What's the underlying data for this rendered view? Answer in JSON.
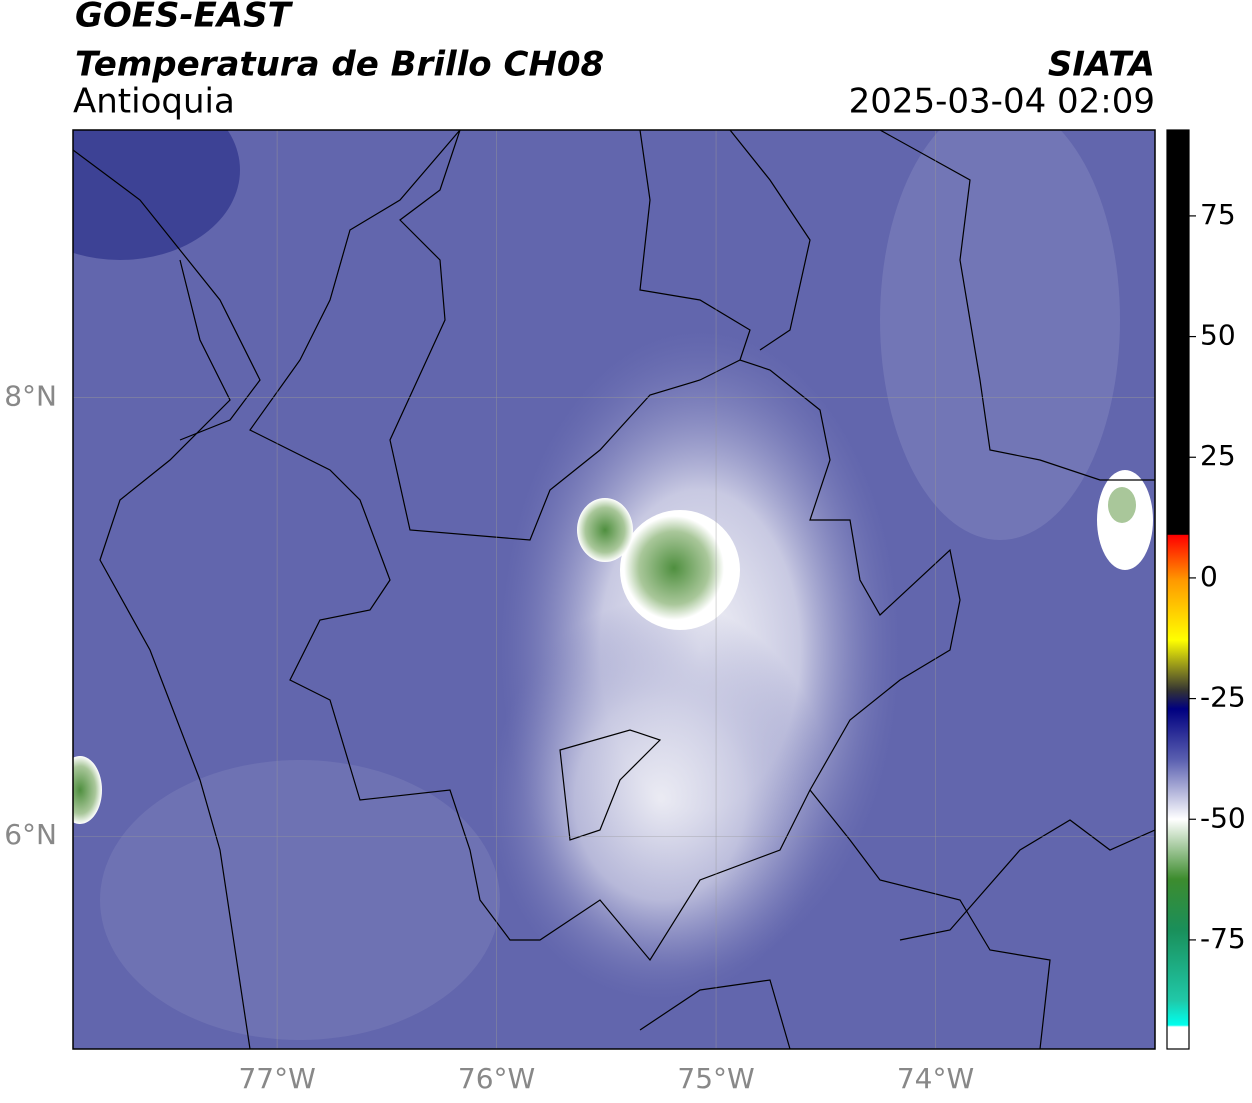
{
  "header": {
    "title": "GOES-EAST",
    "subtitle": "Temperatura de Brillo CH08",
    "region": "Antioquia",
    "source": "SIATA",
    "datetime": "2025-03-04 02:09"
  },
  "map": {
    "lon_range": [
      -77.93,
      -73.0
    ],
    "lat_range": [
      5.03,
      9.22
    ],
    "lon_ticks": [
      {
        "value": -77,
        "label": "77°W"
      },
      {
        "value": -76,
        "label": "76°W"
      },
      {
        "value": -75,
        "label": "75°W"
      },
      {
        "value": -74,
        "label": "74°W"
      }
    ],
    "lat_ticks": [
      {
        "value": 8,
        "label": "8°N"
      },
      {
        "value": 6,
        "label": "6°N"
      }
    ]
  },
  "colorbar": {
    "range": [
      -97.6,
      92.8
    ],
    "ticks": [
      75,
      50,
      25,
      0,
      -25,
      -50,
      -75
    ]
  }
}
